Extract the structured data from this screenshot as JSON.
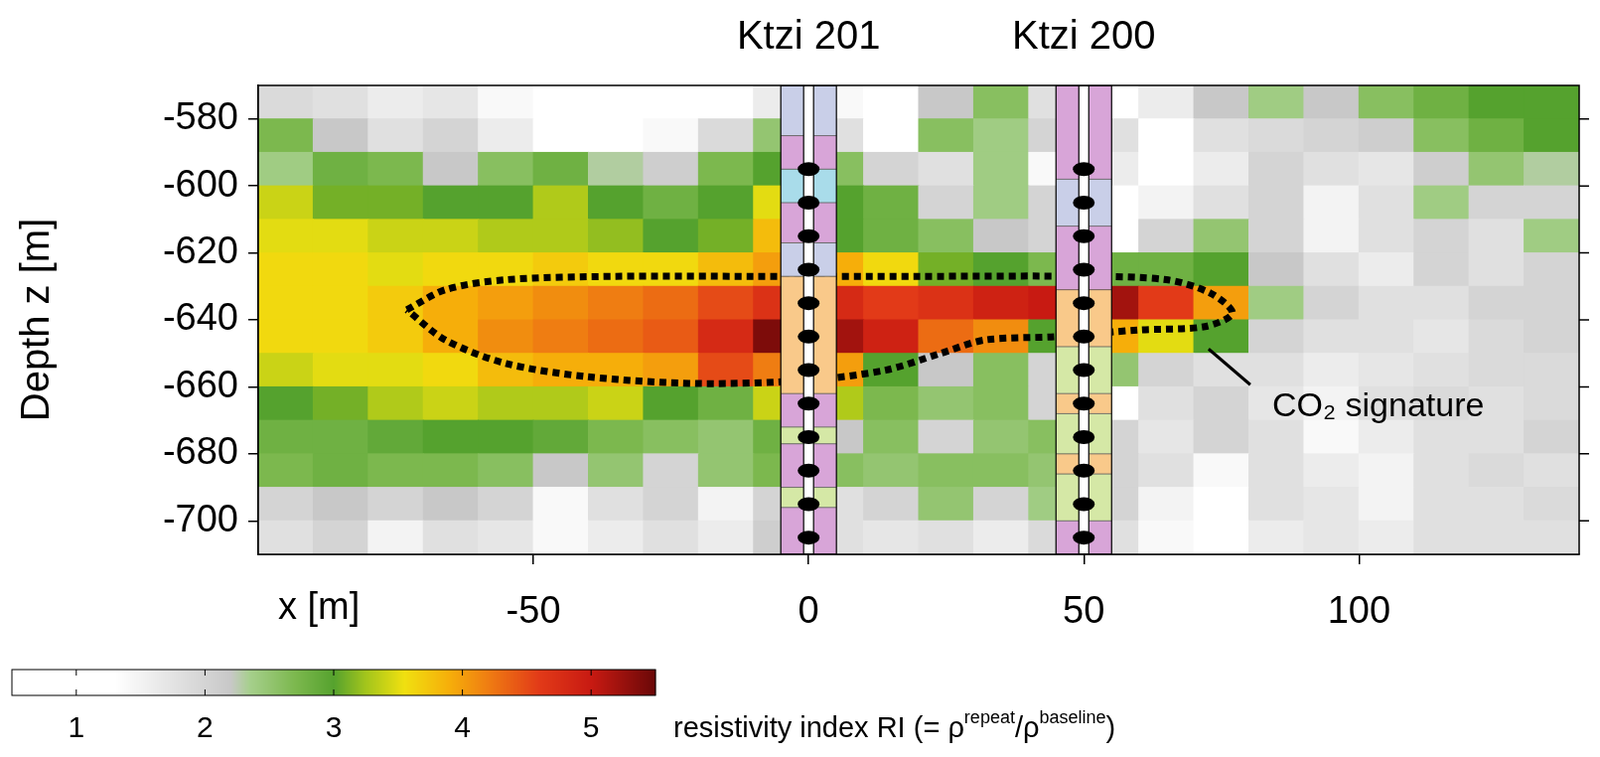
{
  "chart_data": {
    "type": "heatmap",
    "x_label": "x [m]",
    "y_label": "Depth z [m]",
    "xlim": [
      -100,
      140
    ],
    "xticks": [
      -50,
      0,
      50,
      100
    ],
    "ylim": [
      -710,
      -570
    ],
    "yticks": [
      -700,
      -680,
      -660,
      -640,
      -620,
      -600,
      -580
    ],
    "grid": false,
    "x": [
      -95,
      -85,
      -75,
      -65,
      -55,
      -45,
      -35,
      -25,
      -15,
      -5,
      5,
      15,
      25,
      35,
      45,
      55,
      65,
      75,
      85,
      95,
      105,
      115,
      125,
      135
    ],
    "y": [
      -575,
      -585,
      -595,
      -605,
      -615,
      -625,
      -635,
      -645,
      -655,
      -665,
      -675,
      -685,
      -695,
      -705
    ],
    "cells": [
      [
        1.9,
        1.8,
        1.6,
        1.7,
        1.4,
        1.2,
        1.1,
        1.2,
        1.3,
        1.6,
        1.4,
        1.0,
        2.2,
        2.6,
        1.8,
        1.2,
        1.6,
        2.2,
        2.4,
        2.2,
        2.6,
        2.8,
        3.0,
        3.0
      ],
      [
        2.7,
        2.2,
        1.8,
        2.0,
        1.6,
        1.3,
        1.2,
        1.4,
        1.9,
        2.5,
        1.8,
        1.2,
        2.6,
        2.4,
        2.0,
        1.8,
        1.2,
        1.8,
        1.9,
        2.0,
        2.1,
        2.6,
        2.8,
        3.0
      ],
      [
        2.4,
        2.8,
        2.7,
        2.2,
        2.6,
        2.8,
        2.3,
        2.1,
        2.7,
        3.0,
        2.6,
        2.0,
        1.8,
        2.4,
        1.4,
        1.6,
        1.2,
        1.6,
        2.0,
        1.8,
        1.7,
        2.1,
        2.5,
        2.3
      ],
      [
        3.4,
        3.1,
        3.1,
        3.0,
        3.0,
        3.3,
        3.0,
        2.8,
        3.0,
        3.5,
        3.0,
        2.8,
        2.0,
        2.4,
        2.0,
        1.2,
        1.5,
        1.8,
        2.0,
        1.5,
        1.8,
        2.4,
        2.0,
        2.0
      ],
      [
        3.5,
        3.5,
        3.4,
        3.4,
        3.3,
        3.3,
        3.2,
        3.0,
        3.1,
        3.8,
        3.0,
        2.8,
        2.6,
        2.2,
        2.0,
        1.3,
        2.0,
        2.5,
        2.0,
        1.5,
        1.8,
        2.0,
        1.8,
        2.4
      ],
      [
        3.6,
        3.6,
        3.5,
        3.6,
        3.6,
        3.7,
        3.6,
        3.6,
        3.8,
        4.0,
        3.9,
        3.6,
        3.1,
        3.0,
        2.7,
        2.8,
        2.8,
        3.0,
        2.2,
        1.8,
        1.6,
        2.0,
        1.8,
        2.0
      ],
      [
        3.6,
        3.6,
        3.7,
        3.9,
        4.0,
        4.1,
        4.2,
        4.3,
        4.5,
        4.7,
        4.8,
        4.6,
        4.7,
        4.9,
        5.0,
        5.2,
        4.6,
        4.0,
        2.4,
        2.0,
        1.8,
        1.8,
        2.0,
        2.0
      ],
      [
        3.6,
        3.6,
        3.7,
        3.9,
        4.1,
        4.2,
        4.3,
        4.4,
        4.8,
        5.4,
        5.2,
        4.9,
        4.3,
        4.1,
        3.0,
        3.9,
        3.5,
        3.0,
        2.0,
        1.8,
        1.8,
        1.7,
        1.9,
        2.0
      ],
      [
        3.4,
        3.5,
        3.5,
        3.6,
        3.8,
        3.9,
        3.9,
        4.0,
        4.5,
        4.2,
        4.0,
        3.0,
        2.2,
        2.6,
        2.0,
        2.5,
        2.0,
        1.8,
        1.8,
        1.6,
        1.7,
        1.8,
        1.9,
        1.9
      ],
      [
        3.0,
        3.1,
        3.3,
        3.4,
        3.3,
        3.3,
        3.4,
        3.0,
        2.8,
        3.4,
        3.3,
        2.7,
        2.5,
        2.6,
        2.0,
        1.3,
        1.8,
        2.0,
        1.7,
        1.5,
        1.8,
        1.9,
        1.8,
        1.9
      ],
      [
        2.8,
        2.8,
        2.9,
        3.0,
        3.0,
        2.9,
        2.7,
        2.6,
        2.5,
        2.8,
        2.2,
        2.6,
        2.0,
        2.5,
        2.6,
        2.0,
        1.7,
        2.0,
        1.8,
        1.4,
        1.6,
        1.8,
        1.8,
        2.0
      ],
      [
        2.7,
        2.8,
        2.7,
        2.7,
        2.6,
        2.2,
        2.5,
        2.0,
        2.5,
        2.7,
        2.6,
        2.5,
        2.6,
        2.6,
        2.5,
        2.0,
        1.8,
        1.4,
        1.8,
        1.6,
        1.5,
        1.8,
        1.9,
        1.8
      ],
      [
        2.0,
        2.2,
        2.0,
        2.2,
        2.0,
        1.4,
        1.8,
        2.0,
        1.5,
        2.0,
        1.8,
        2.0,
        2.5,
        2.0,
        2.4,
        2.0,
        1.5,
        1.3,
        1.8,
        1.7,
        1.5,
        1.8,
        1.8,
        1.9
      ],
      [
        1.8,
        2.0,
        1.5,
        1.8,
        1.7,
        1.4,
        1.6,
        1.8,
        1.6,
        2.1,
        1.8,
        1.7,
        1.8,
        1.6,
        1.9,
        1.8,
        1.4,
        1.3,
        1.6,
        1.7,
        1.6,
        1.8,
        1.8,
        1.8
      ]
    ],
    "colorbar": {
      "label": "resistivity index RI (= ρrepeat/ρbaseline)",
      "range": [
        0.5,
        5.5
      ],
      "ticks": [
        1,
        2,
        3,
        4,
        5
      ]
    },
    "wells": [
      {
        "name": "Ktzi 201",
        "x": 0,
        "electrodes": [
          -595,
          -605,
          -615,
          -625,
          -635,
          -645,
          -655,
          -665,
          -675,
          -685,
          -695,
          -705
        ],
        "layers": [
          {
            "top": -570,
            "bottom": -585,
            "color": "#c9cfe8"
          },
          {
            "top": -585,
            "bottom": -595,
            "color": "#d8a5d8"
          },
          {
            "top": -595,
            "bottom": -605,
            "color": "#a9dcea"
          },
          {
            "top": -605,
            "bottom": -617,
            "color": "#d8a5d8"
          },
          {
            "top": -617,
            "bottom": -627,
            "color": "#c9cfe8"
          },
          {
            "top": -627,
            "bottom": -662,
            "color": "#f9c98a"
          },
          {
            "top": -662,
            "bottom": -672,
            "color": "#d8a5d8"
          },
          {
            "top": -672,
            "bottom": -677,
            "color": "#d5e8a6"
          },
          {
            "top": -677,
            "bottom": -690,
            "color": "#d8a5d8"
          },
          {
            "top": -690,
            "bottom": -696,
            "color": "#d5e8a6"
          },
          {
            "top": -696,
            "bottom": -710,
            "color": "#d8a5d8"
          }
        ]
      },
      {
        "name": "Ktzi 200",
        "x": 50,
        "electrodes": [
          -595,
          -605,
          -615,
          -625,
          -635,
          -645,
          -655,
          -665,
          -675,
          -685,
          -695,
          -705
        ],
        "layers": [
          {
            "top": -570,
            "bottom": -598,
            "color": "#d8a5d8"
          },
          {
            "top": -598,
            "bottom": -612,
            "color": "#c9cfe8"
          },
          {
            "top": -612,
            "bottom": -631,
            "color": "#d8a5d8"
          },
          {
            "top": -631,
            "bottom": -648,
            "color": "#f9c98a"
          },
          {
            "top": -648,
            "bottom": -662,
            "color": "#d5e8a6"
          },
          {
            "top": -662,
            "bottom": -668,
            "color": "#f9c98a"
          },
          {
            "top": -668,
            "bottom": -680,
            "color": "#d5e8a6"
          },
          {
            "top": -680,
            "bottom": -686,
            "color": "#f9c98a"
          },
          {
            "top": -686,
            "bottom": -700,
            "color": "#d5e8a6"
          },
          {
            "top": -700,
            "bottom": -710,
            "color": "#d8a5d8"
          }
        ]
      }
    ],
    "outline": {
      "label": "CO₂ signature",
      "points": [
        [
          -73,
          -637
        ],
        [
          -66,
          -631
        ],
        [
          -55,
          -628
        ],
        [
          -35,
          -627
        ],
        [
          -10,
          -627
        ],
        [
          20,
          -627
        ],
        [
          50,
          -627
        ],
        [
          65,
          -628
        ],
        [
          73,
          -632
        ],
        [
          77,
          -638
        ],
        [
          72,
          -642
        ],
        [
          60,
          -643
        ],
        [
          45,
          -645
        ],
        [
          32,
          -646
        ],
        [
          24,
          -650
        ],
        [
          14,
          -655
        ],
        [
          0,
          -658
        ],
        [
          -20,
          -659
        ],
        [
          -40,
          -657
        ],
        [
          -55,
          -653
        ],
        [
          -66,
          -646
        ]
      ]
    }
  }
}
